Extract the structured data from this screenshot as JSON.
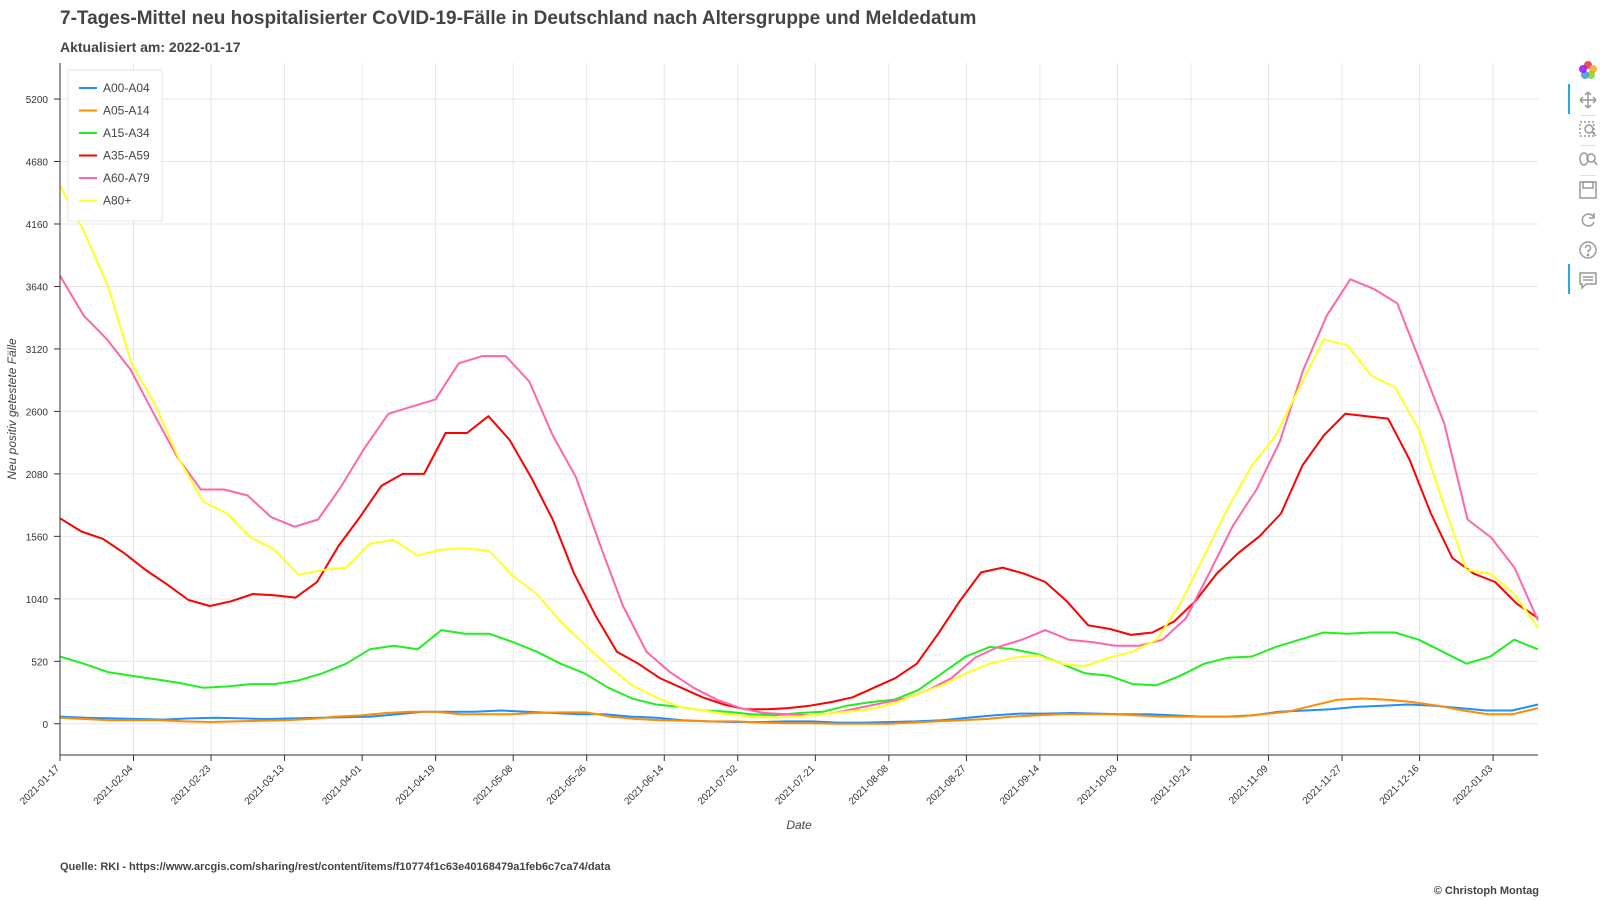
{
  "title": "7-Tages-Mittel neu hospitalisierter CoVID-19-Fälle in Deutschland nach Altersgruppe und Meldedatum",
  "subtitle": "Aktualisiert am: 2022-01-17",
  "source": "Quelle: RKI - https://www.arcgis.com/sharing/rest/content/items/f10774f1c63e40168479a1feb6c7ca74/data",
  "credit": "© Christoph Montag",
  "toolbar": {
    "icons": [
      "bokeh-logo-icon",
      "pan-icon",
      "box-zoom-icon",
      "wheel-zoom-icon",
      "save-icon",
      "reset-icon",
      "help-icon",
      "hover-icon"
    ]
  },
  "chart_data": {
    "type": "line",
    "xlabel": "Date",
    "ylabel": "Neu positiv getestete Fälle",
    "x_start": "2021-01-17",
    "x_end": "2022-01-14",
    "x_step_days": 7,
    "xlim": [
      "2021-01-17",
      "2022-01-14"
    ],
    "ylim": [
      -260,
      5500
    ],
    "yticks": [
      0,
      520,
      1040,
      1560,
      2080,
      2600,
      3120,
      3640,
      4160,
      4680,
      5200
    ],
    "xtick_labels": [
      "2021-01-17",
      "2021-02-04",
      "2021-02-23",
      "2021-03-13",
      "2021-04-01",
      "2021-04-19",
      "2021-05-08",
      "2021-05-26",
      "2021-06-14",
      "2021-07-02",
      "2021-07-21",
      "2021-08-08",
      "2021-08-27",
      "2021-09-14",
      "2021-10-03",
      "2021-10-21",
      "2021-11-09",
      "2021-11-27",
      "2021-12-16",
      "2022-01-03"
    ],
    "grid": true,
    "legend_position": "top-left",
    "series": [
      {
        "name": "A00-A04",
        "color": "#1f8fff",
        "values": [
          60,
          50,
          45,
          40,
          35,
          45,
          50,
          45,
          40,
          45,
          50,
          55,
          60,
          80,
          100,
          100,
          100,
          110,
          100,
          90,
          80,
          80,
          60,
          50,
          30,
          20,
          15,
          15,
          20,
          20,
          10,
          10,
          15,
          20,
          30,
          50,
          70,
          85,
          85,
          90,
          85,
          80,
          80,
          70,
          60,
          60,
          70,
          100,
          110,
          120,
          140,
          150,
          160,
          150,
          130,
          110,
          110,
          160
        ]
      },
      {
        "name": "A05-A14",
        "color": "#ff8c00",
        "values": [
          50,
          40,
          30,
          30,
          30,
          20,
          15,
          20,
          25,
          30,
          40,
          60,
          70,
          90,
          100,
          100,
          80,
          80,
          80,
          90,
          95,
          95,
          60,
          40,
          30,
          25,
          20,
          20,
          10,
          5,
          5,
          0,
          0,
          0,
          10,
          20,
          30,
          40,
          60,
          70,
          80,
          80,
          80,
          70,
          60,
          60,
          60,
          60,
          80,
          100,
          150,
          200,
          210,
          200,
          180,
          150,
          110,
          80,
          80,
          130
        ]
      },
      {
        "name": "A15-A34",
        "color": "#22ee22",
        "values": [
          560,
          500,
          430,
          400,
          370,
          340,
          300,
          310,
          330,
          330,
          360,
          420,
          500,
          620,
          650,
          620,
          780,
          750,
          750,
          680,
          600,
          500,
          420,
          300,
          210,
          160,
          140,
          110,
          100,
          80,
          70,
          90,
          100,
          150,
          180,
          200,
          280,
          420,
          560,
          640,
          620,
          580,
          500,
          420,
          400,
          330,
          320,
          400,
          500,
          550,
          560,
          640,
          700,
          760,
          750,
          760,
          760,
          700,
          600,
          500,
          560,
          700,
          620
        ]
      },
      {
        "name": "A35-A59",
        "color": "#ff0000",
        "values": [
          1710,
          1600,
          1540,
          1420,
          1280,
          1160,
          1030,
          980,
          1020,
          1080,
          1070,
          1050,
          1180,
          1480,
          1720,
          1980,
          2080,
          2080,
          2420,
          2420,
          2560,
          2360,
          2050,
          1700,
          1250,
          900,
          600,
          500,
          380,
          300,
          220,
          160,
          120,
          120,
          130,
          150,
          180,
          220,
          300,
          380,
          500,
          750,
          1020,
          1260,
          1300,
          1250,
          1180,
          1020,
          820,
          790,
          740,
          760,
          850,
          1020,
          1250,
          1420,
          1560,
          1750,
          2150,
          2400,
          2580,
          2560,
          2540,
          2200,
          1750,
          1380,
          1250,
          1180,
          1000,
          880
        ]
      },
      {
        "name": "A60-A79",
        "color": "#ff66aa",
        "values": [
          3730,
          3400,
          3200,
          2950,
          2580,
          2220,
          1950,
          1950,
          1900,
          1720,
          1640,
          1700,
          1980,
          2300,
          2580,
          2640,
          2700,
          3000,
          3060,
          3060,
          2850,
          2400,
          2050,
          1500,
          980,
          600,
          430,
          300,
          200,
          130,
          90,
          80,
          70,
          90,
          130,
          170,
          210,
          280,
          380,
          550,
          640,
          700,
          780,
          700,
          680,
          650,
          650,
          700,
          880,
          1260,
          1650,
          1950,
          2350,
          2950,
          3400,
          3700,
          3620,
          3500,
          3000,
          2500,
          1700,
          1550,
          1300,
          860
        ]
      },
      {
        "name": "A80+",
        "color": "#ffff22",
        "values": [
          4480,
          4100,
          3650,
          3000,
          2650,
          2200,
          1850,
          1750,
          1550,
          1450,
          1240,
          1280,
          1300,
          1500,
          1530,
          1400,
          1450,
          1460,
          1440,
          1230,
          1080,
          850,
          660,
          480,
          320,
          220,
          140,
          110,
          80,
          60,
          50,
          60,
          80,
          100,
          120,
          170,
          250,
          320,
          420,
          500,
          550,
          570,
          500,
          480,
          550,
          600,
          700,
          1000,
          1400,
          1800,
          2150,
          2400,
          2800,
          3200,
          3150,
          2900,
          2800,
          2450,
          1850,
          1280,
          1250,
          1080,
          800
        ]
      }
    ]
  }
}
